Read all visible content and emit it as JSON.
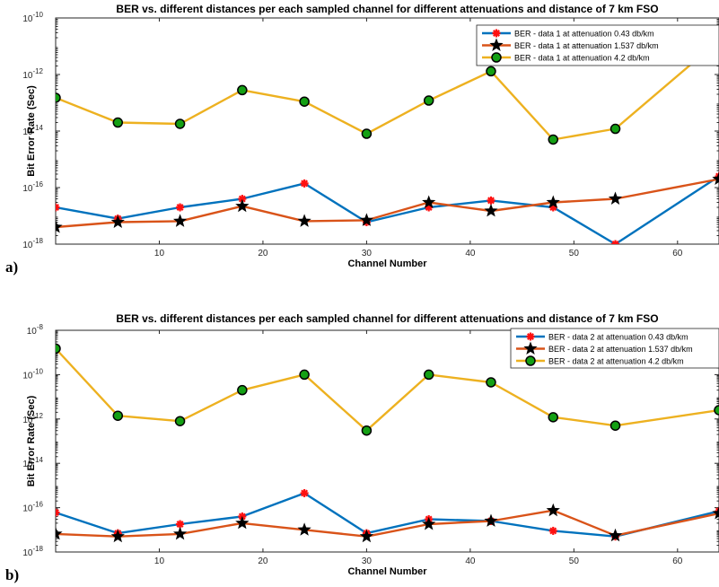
{
  "chart_data": [
    {
      "type": "line",
      "panel_label": "a)",
      "title": "BER vs. different distances per each sampled channel for different attenuations and distance of 7 km FSO",
      "xlabel": "Channel Number",
      "ylabel": "Bit Error Rate (Sec)",
      "xlim": [
        0,
        64
      ],
      "ylim": [
        1e-18,
        1e-10
      ],
      "yscale": "log",
      "xticks": [
        10,
        20,
        30,
        40,
        50,
        60
      ],
      "yticks": [
        {
          "value": 1e-18,
          "base": "10",
          "exp": "-18"
        },
        {
          "value": 1e-16,
          "base": "10",
          "exp": "-16"
        },
        {
          "value": 1e-14,
          "base": "10",
          "exp": "-14"
        },
        {
          "value": 1e-12,
          "base": "10",
          "exp": "-12"
        },
        {
          "value": 1e-10,
          "base": "10",
          "exp": "-10"
        }
      ],
      "legend_position": "top-right",
      "grid": false,
      "x": [
        0,
        6,
        12,
        18,
        24,
        30,
        36,
        42,
        48,
        54,
        64
      ],
      "series": [
        {
          "name": "BER - data 1 at attenuation 0.43 db/km",
          "color": "#0072bd",
          "marker": "red-asterisk",
          "values": [
            2e-17,
            8e-18,
            2e-17,
            4e-17,
            1.4e-16,
            6e-18,
            2e-17,
            3.5e-17,
            2e-17,
            1e-18,
            2.5e-16
          ]
        },
        {
          "name": "BER - data 1 at attenuation 1.537 db/km",
          "color": "#d95319",
          "marker": "black-star",
          "values": [
            4e-18,
            6e-18,
            6.5e-18,
            2.2e-17,
            6.5e-18,
            7e-18,
            3e-17,
            1.5e-17,
            3e-17,
            4e-17,
            2e-16
          ]
        },
        {
          "name": "BER - data 1 at attenuation 4.2 db/km",
          "color": "#edb120",
          "marker": "green-circle",
          "values": [
            1.5e-13,
            2e-14,
            1.8e-14,
            2.8e-13,
            1.1e-13,
            8e-15,
            1.2e-13,
            1.3e-12,
            5e-15,
            1.2e-14,
            1.6e-11
          ]
        }
      ]
    },
    {
      "type": "line",
      "panel_label": "b)",
      "title": "BER vs. different distances per each sampled channel for different attenuations and distance of 7 km FSO",
      "xlabel": "Channel Number",
      "ylabel": "Bit Error Rate (Sec)",
      "xlim": [
        0,
        64
      ],
      "ylim": [
        1e-18,
        1e-08
      ],
      "yscale": "log",
      "xticks": [
        10,
        20,
        30,
        40,
        50,
        60
      ],
      "yticks": [
        {
          "value": 1e-18,
          "base": "10",
          "exp": "-18"
        },
        {
          "value": 1e-16,
          "base": "10",
          "exp": "-16"
        },
        {
          "value": 1e-14,
          "base": "10",
          "exp": "-14"
        },
        {
          "value": 1e-12,
          "base": "10",
          "exp": "-12"
        },
        {
          "value": 1e-10,
          "base": "10",
          "exp": "-10"
        },
        {
          "value": 1e-08,
          "base": "10",
          "exp": "-8"
        }
      ],
      "legend_position": "top-right",
      "grid": false,
      "x": [
        0,
        6,
        12,
        18,
        24,
        30,
        36,
        42,
        48,
        54,
        64
      ],
      "series": [
        {
          "name": "BER - data 2 at attenuation 0.43 db/km",
          "color": "#0072bd",
          "marker": "red-asterisk",
          "values": [
            6e-17,
            7e-18,
            1.8e-17,
            4e-17,
            4.5e-16,
            7e-18,
            3e-17,
            2.5e-17,
            9e-18,
            5e-18,
            7e-17
          ]
        },
        {
          "name": "BER - data 2 at attenuation 1.537 db/km",
          "color": "#d95319",
          "marker": "black-star",
          "values": [
            6.5e-18,
            5e-18,
            6.5e-18,
            2e-17,
            1e-17,
            5e-18,
            1.8e-17,
            2.5e-17,
            7.5e-17,
            5.5e-18,
            5.5e-17
          ]
        },
        {
          "name": "BER - data 2 at attenuation 4.2 db/km",
          "color": "#edb120",
          "marker": "green-circle",
          "values": [
            1.5e-09,
            1.4e-12,
            8e-13,
            2e-11,
            1e-10,
            3e-13,
            1e-10,
            4.5e-11,
            1.2e-12,
            5e-13,
            2.5e-12
          ]
        }
      ]
    }
  ]
}
